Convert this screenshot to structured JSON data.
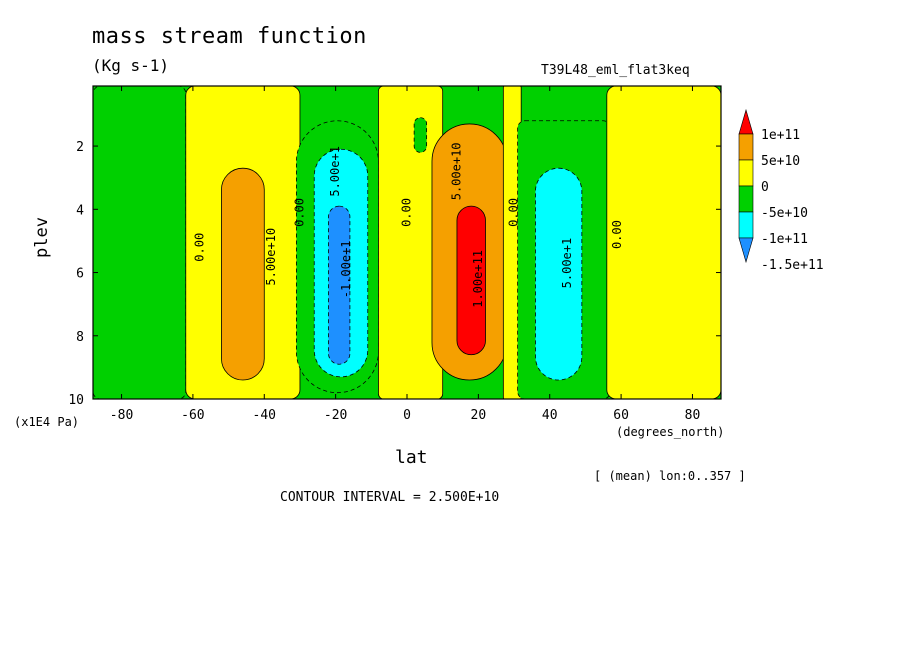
{
  "chart_data": {
    "type": "heatmap",
    "title": "mass stream function",
    "units": "(Kg s-1)",
    "run_name": "T39L48_eml_flat3keq",
    "xlabel": "lat",
    "x_unit": "(degrees_north)",
    "ylabel": "plev",
    "y_unit": "(x1E4 Pa)",
    "subtitle": "[ (mean) lon:0..357 ]",
    "contour_interval": "CONTOUR INTERVAL = 2.500E+10",
    "xlim": [
      -88,
      88
    ],
    "ylim": [
      10,
      0.1
    ],
    "x_ticks": [
      -80,
      -60,
      -40,
      -20,
      0,
      20,
      40,
      60,
      80
    ],
    "y_ticks": [
      2,
      4,
      6,
      8,
      10
    ],
    "colorbar": {
      "labels": [
        "1e+11",
        "5e+10",
        "0",
        "-5e+10",
        "-1e+11",
        "-1.5e+11"
      ],
      "colors": [
        "#ff0000",
        "#f5a000",
        "#ffff00",
        "#00d000",
        "#00ffff",
        "#1e90ff"
      ]
    },
    "regions": [
      {
        "level": "-5e+10",
        "lat_range": [
          -88,
          -62
        ],
        "plev_range": [
          0.1,
          10
        ]
      },
      {
        "level": "0",
        "lat_range": [
          -62,
          -30
        ],
        "plev_range": [
          0.1,
          10
        ]
      },
      {
        "level": "5e+10",
        "lat_range": [
          -52,
          -40
        ],
        "plev_range": [
          2.7,
          9.4
        ]
      },
      {
        "level": "-5e+10",
        "lat_range": [
          -31,
          -8
        ],
        "plev_range": [
          1.2,
          9.8
        ]
      },
      {
        "level": "-1e+11",
        "lat_range": [
          -26,
          -11
        ],
        "plev_range": [
          2.1,
          9.3
        ]
      },
      {
        "level": "-1.5e+11",
        "lat_range": [
          -22,
          -16
        ],
        "plev_range": [
          3.9,
          8.9
        ]
      },
      {
        "level": "0",
        "lat_range": [
          -8,
          10
        ],
        "plev_range": [
          0.1,
          10
        ]
      },
      {
        "level": "-5e+10",
        "lat_range": [
          2,
          5.5
        ],
        "plev_range": [
          1.1,
          2.2
        ]
      },
      {
        "level": "5e+10",
        "lat_range": [
          7,
          28
        ],
        "plev_range": [
          1.3,
          9.4
        ]
      },
      {
        "level": "1e+11",
        "lat_range": [
          14,
          22
        ],
        "plev_range": [
          3.9,
          8.6
        ]
      },
      {
        "level": "0",
        "lat_range": [
          27,
          32
        ],
        "plev_range": [
          0.1,
          10
        ]
      },
      {
        "level": "-5e+10",
        "lat_range": [
          31,
          57
        ],
        "plev_range": [
          1.2,
          10
        ]
      },
      {
        "level": "-1e+11",
        "lat_range": [
          36,
          49
        ],
        "plev_range": [
          2.7,
          9.4
        ]
      },
      {
        "level": "0",
        "lat_range": [
          56,
          88
        ],
        "plev_range": [
          0.1,
          10
        ]
      }
    ],
    "contour_labels": [
      {
        "text": "5.00e+10",
        "lat": -38,
        "plev": 5.5
      },
      {
        "text": "5.00e+1",
        "lat": -20,
        "plev": 2.8
      },
      {
        "text": "-1.00e+1",
        "lat": -17,
        "plev": 5.9
      },
      {
        "text": "5.00e+10",
        "lat": 14,
        "plev": 2.8
      },
      {
        "text": "1.00e+11",
        "lat": 20,
        "plev": 6.2
      },
      {
        "text": "5.00e+1",
        "lat": 45,
        "plev": 5.7
      },
      {
        "text": "0.00",
        "lat": -58,
        "plev": 5.2
      },
      {
        "text": "0.00",
        "lat": -30,
        "plev": 4.1
      },
      {
        "text": "0.00",
        "lat": 0,
        "plev": 4.1
      },
      {
        "text": "0.00",
        "lat": 30,
        "plev": 4.1
      },
      {
        "text": "0.00",
        "lat": 59,
        "plev": 4.8
      }
    ]
  }
}
